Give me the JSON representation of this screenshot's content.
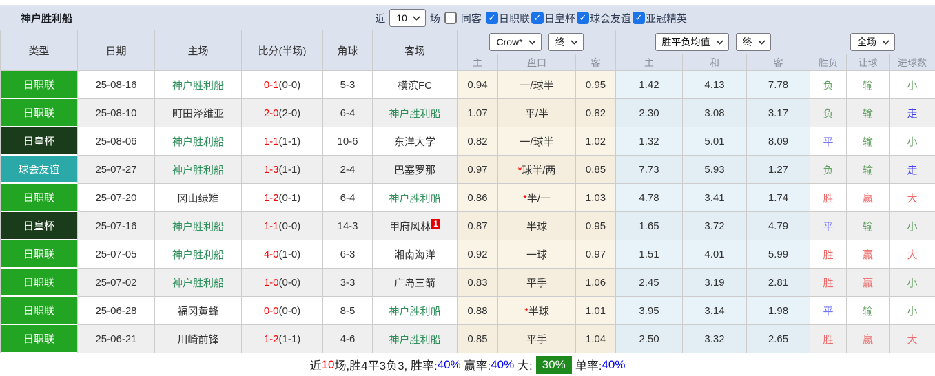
{
  "colors": {
    "toolbar_bg": "#dce3ef",
    "type_league": "#22a522",
    "type_cup": "#1a3c1a",
    "type_friendly": "#2ba8a8",
    "focus_team_green": "#2d8f5a",
    "score_red": "#ff0000",
    "result_win_red": "#ee6a6a",
    "result_lose_green": "#66a266",
    "result_draw_blue": "#7373fa",
    "result_walk_blue": "#4040f0",
    "handicap_col_bg": "#faf4e7",
    "avg_col_bg": "#e8f2f9",
    "checkbox_blue": "#1a73e8",
    "footer_badge_green": "#1e8a1e",
    "footer_pct_blue": "#0000f0"
  },
  "toolbar": {
    "title": "神户胜利船",
    "near_label": "近",
    "matches_select": "10",
    "matches_label": "场",
    "same_opponent_label": "同客",
    "same_opponent_checked": false,
    "filters": [
      {
        "label": "日职联",
        "checked": true
      },
      {
        "label": "日皇杯",
        "checked": true
      },
      {
        "label": "球会友谊",
        "checked": true
      },
      {
        "label": "亚冠精英",
        "checked": true
      }
    ]
  },
  "table": {
    "columns": [
      "类型",
      "日期",
      "主场",
      "比分(半场)",
      "角球",
      "客场"
    ],
    "odds_group": {
      "select1": "Crow*",
      "select2": "终",
      "sub": [
        "主",
        "盘口",
        "客"
      ]
    },
    "avg_group": {
      "select1": "胜平负均值",
      "select2": "终",
      "sub": [
        "主",
        "和",
        "客"
      ]
    },
    "result_group": {
      "select": "全场",
      "sub": [
        "胜负",
        "让球",
        "进球数"
      ]
    },
    "rows": [
      {
        "type": "日职联",
        "tc": "league",
        "date": "25-08-16",
        "home": "神户胜利船",
        "hf": true,
        "ft": "0-1",
        "ht": "(0-0)",
        "corners": "5-3",
        "away": "横滨FC",
        "af": false,
        "badge": "",
        "o": [
          "0.94",
          "一/球半",
          "0.95"
        ],
        "a": [
          "1.42",
          "4.13",
          "7.78"
        ],
        "res": [
          [
            "负",
            "g"
          ],
          [
            "输",
            "g"
          ],
          [
            "小",
            "g"
          ]
        ]
      },
      {
        "type": "日职联",
        "tc": "league",
        "date": "25-08-10",
        "home": "町田泽维亚",
        "hf": false,
        "ft": "2-0",
        "ht": "(2-0)",
        "corners": "6-4",
        "away": "神户胜利船",
        "af": true,
        "badge": "",
        "o": [
          "1.07",
          "平/半",
          "0.82"
        ],
        "a": [
          "2.30",
          "3.08",
          "3.17"
        ],
        "res": [
          [
            "负",
            "g"
          ],
          [
            "输",
            "g"
          ],
          [
            "走",
            "w"
          ]
        ]
      },
      {
        "type": "日皇杯",
        "tc": "cup",
        "date": "25-08-06",
        "home": "神户胜利船",
        "hf": true,
        "ft": "1-1",
        "ht": "(1-1)",
        "corners": "10-6",
        "away": "东洋大学",
        "af": false,
        "badge": "",
        "o": [
          "0.82",
          "一/球半",
          "1.02"
        ],
        "a": [
          "1.32",
          "5.01",
          "8.09"
        ],
        "res": [
          [
            "平",
            "b"
          ],
          [
            "输",
            "g"
          ],
          [
            "小",
            "g"
          ]
        ]
      },
      {
        "type": "球会友谊",
        "tc": "friendly",
        "date": "25-07-27",
        "home": "神户胜利船",
        "hf": true,
        "ft": "1-3",
        "ht": "(1-1)",
        "corners": "2-4",
        "away": "巴塞罗那",
        "af": false,
        "badge": "",
        "o": [
          "0.97",
          "*球半/两",
          "0.85"
        ],
        "a": [
          "7.73",
          "5.93",
          "1.27"
        ],
        "res": [
          [
            "负",
            "g"
          ],
          [
            "输",
            "g"
          ],
          [
            "走",
            "w"
          ]
        ]
      },
      {
        "type": "日职联",
        "tc": "league",
        "date": "25-07-20",
        "home": "冈山绿雉",
        "hf": false,
        "ft": "1-2",
        "ht": "(0-1)",
        "corners": "6-4",
        "away": "神户胜利船",
        "af": true,
        "badge": "",
        "o": [
          "0.86",
          "*半/一",
          "1.03"
        ],
        "a": [
          "4.78",
          "3.41",
          "1.74"
        ],
        "res": [
          [
            "胜",
            "r"
          ],
          [
            "赢",
            "r"
          ],
          [
            "大",
            "r"
          ]
        ]
      },
      {
        "type": "日皇杯",
        "tc": "cup",
        "date": "25-07-16",
        "home": "神户胜利船",
        "hf": true,
        "ft": "1-1",
        "ht": "(0-0)",
        "corners": "14-3",
        "away": "甲府风林",
        "af": false,
        "badge": "1",
        "o": [
          "0.87",
          "半球",
          "0.95"
        ],
        "a": [
          "1.65",
          "3.72",
          "4.79"
        ],
        "res": [
          [
            "平",
            "b"
          ],
          [
            "输",
            "g"
          ],
          [
            "小",
            "g"
          ]
        ]
      },
      {
        "type": "日职联",
        "tc": "league",
        "date": "25-07-05",
        "home": "神户胜利船",
        "hf": true,
        "ft": "4-0",
        "ht": "(1-0)",
        "corners": "6-3",
        "away": "湘南海洋",
        "af": false,
        "badge": "",
        "o": [
          "0.92",
          "一球",
          "0.97"
        ],
        "a": [
          "1.51",
          "4.01",
          "5.99"
        ],
        "res": [
          [
            "胜",
            "r"
          ],
          [
            "赢",
            "r"
          ],
          [
            "大",
            "r"
          ]
        ]
      },
      {
        "type": "日职联",
        "tc": "league",
        "date": "25-07-02",
        "home": "神户胜利船",
        "hf": true,
        "ft": "1-0",
        "ht": "(0-0)",
        "corners": "3-3",
        "away": "广岛三箭",
        "af": false,
        "badge": "",
        "o": [
          "0.83",
          "平手",
          "1.06"
        ],
        "a": [
          "2.45",
          "3.19",
          "2.81"
        ],
        "res": [
          [
            "胜",
            "r"
          ],
          [
            "赢",
            "r"
          ],
          [
            "小",
            "g"
          ]
        ]
      },
      {
        "type": "日职联",
        "tc": "league",
        "date": "25-06-28",
        "home": "福冈黄蜂",
        "hf": false,
        "ft": "0-0",
        "ht": "(0-0)",
        "corners": "8-5",
        "away": "神户胜利船",
        "af": true,
        "badge": "",
        "o": [
          "0.88",
          "*半球",
          "1.01"
        ],
        "a": [
          "3.95",
          "3.14",
          "1.98"
        ],
        "res": [
          [
            "平",
            "b"
          ],
          [
            "输",
            "g"
          ],
          [
            "小",
            "g"
          ]
        ]
      },
      {
        "type": "日职联",
        "tc": "league",
        "date": "25-06-21",
        "home": "川崎前锋",
        "hf": false,
        "ft": "1-2",
        "ht": "(1-1)",
        "corners": "4-6",
        "away": "神户胜利船",
        "af": true,
        "badge": "",
        "o": [
          "0.85",
          "平手",
          "1.04"
        ],
        "a": [
          "2.50",
          "3.32",
          "2.65"
        ],
        "res": [
          [
            "胜",
            "r"
          ],
          [
            "赢",
            "r"
          ],
          [
            "大",
            "r"
          ]
        ]
      }
    ]
  },
  "footer": {
    "segments": [
      {
        "t": "近"
      },
      {
        "t": "10",
        "c": "red"
      },
      {
        "t": "场,胜4平3负3, 胜率:"
      },
      {
        "t": "40%",
        "c": "blue"
      },
      {
        "t": " 赢率:"
      },
      {
        "t": "40%",
        "c": "blue"
      },
      {
        "t": " 大:"
      },
      {
        "t": "30%",
        "c": "badge"
      },
      {
        "t": "单率:"
      },
      {
        "t": "40%",
        "c": "blue"
      }
    ]
  }
}
